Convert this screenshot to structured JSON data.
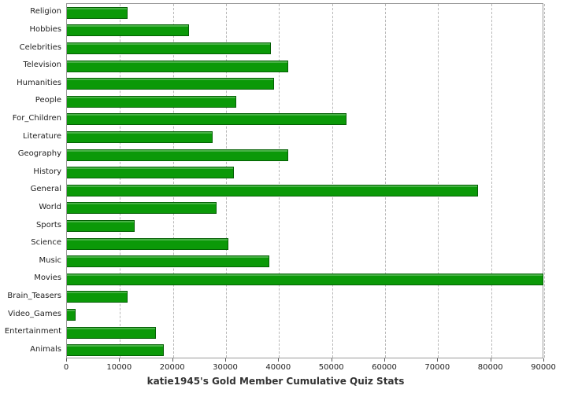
{
  "chart_data": {
    "type": "bar",
    "orientation": "horizontal",
    "title": "katie1945's Gold Member Cumulative Quiz Stats",
    "xlabel": "",
    "ylabel": "",
    "xlim": [
      0,
      90000
    ],
    "xticks": [
      0,
      10000,
      20000,
      30000,
      40000,
      50000,
      60000,
      70000,
      80000,
      90000
    ],
    "grid": "vertical-dashed",
    "legend": "none",
    "bar_color": "#0b9908",
    "bar_border_color": "#045f04",
    "categories": [
      "Religion",
      "Hobbies",
      "Celebrities",
      "Television",
      "Humanities",
      "People",
      "For_Children",
      "Literature",
      "Geography",
      "History",
      "General",
      "World",
      "Sports",
      "Science",
      "Music",
      "Movies",
      "Brain_Teasers",
      "Video_Games",
      "Entertainment",
      "Animals"
    ],
    "values": [
      11500,
      23000,
      38500,
      41800,
      39000,
      32000,
      52700,
      27500,
      41800,
      31500,
      77500,
      28200,
      12800,
      30500,
      38200,
      89800,
      11500,
      1600,
      16800,
      18200
    ]
  }
}
